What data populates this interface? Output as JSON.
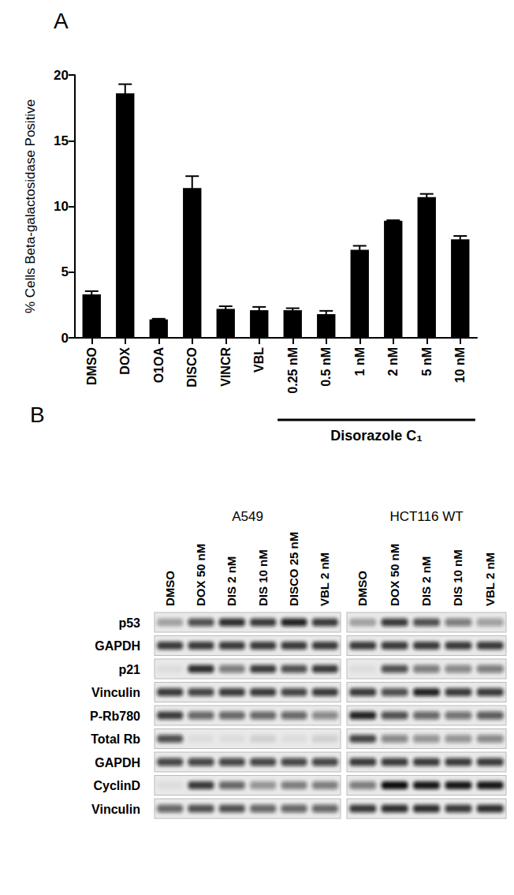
{
  "chart_data": {
    "type": "bar",
    "y_label": "% Cells Beta-galactosidase Positive",
    "categories": [
      "DMSO",
      "DOX",
      "O1OA",
      "DISCO",
      "VINCR",
      "VBL",
      "0.25 nM",
      "0.5 nM",
      "1 nM",
      "2 nM",
      "5 nM",
      "10 nM"
    ],
    "values": [
      3.3,
      18.6,
      1.4,
      11.4,
      2.2,
      2.1,
      2.1,
      1.8,
      6.7,
      8.9,
      10.7,
      7.5
    ],
    "errors": [
      0.25,
      0.7,
      0.05,
      0.9,
      0.2,
      0.25,
      0.15,
      0.25,
      0.3,
      0.05,
      0.25,
      0.25
    ],
    "color": "#000000",
    "ylim": [
      0,
      20
    ],
    "yticks": [
      0,
      5,
      10,
      15,
      20
    ],
    "grid": false,
    "group": {
      "label": "Disorazole C₁",
      "from": "0.25 nM",
      "to": "10 nM"
    }
  },
  "panel_labels": [
    "A",
    "B"
  ],
  "western_blot": {
    "rows": [
      "p53",
      "GAPDH",
      "p21",
      "Vinculin",
      "P-Rb780",
      "Total Rb",
      "GAPDH",
      "CyclinD",
      "Vinculin"
    ],
    "groups": [
      {
        "name": "A549",
        "lanes": [
          "DMSO",
          "DOX 50 nM",
          "DIS 2 nM",
          "DIS 10 nM",
          "DISCO 25 nM",
          "VBL 2 nM"
        ],
        "bands": [
          [
            0.3,
            0.7,
            0.85,
            0.8,
            0.9,
            0.8
          ],
          [
            0.8,
            0.8,
            0.8,
            0.8,
            0.8,
            0.8
          ],
          [
            0.05,
            0.85,
            0.5,
            0.8,
            0.7,
            0.8
          ],
          [
            0.8,
            0.75,
            0.8,
            0.8,
            0.75,
            0.8
          ],
          [
            0.8,
            0.6,
            0.6,
            0.6,
            0.6,
            0.45
          ],
          [
            0.7,
            0.05,
            0.05,
            0.1,
            0.05,
            0.1
          ],
          [
            0.75,
            0.75,
            0.75,
            0.75,
            0.75,
            0.75
          ],
          [
            0.05,
            0.8,
            0.6,
            0.4,
            0.5,
            0.5
          ],
          [
            0.6,
            0.7,
            0.7,
            0.6,
            0.6,
            0.6
          ]
        ]
      },
      {
        "name": "HCT116 WT",
        "lanes": [
          "DMSO",
          "DOX 50 nM",
          "DIS 2 nM",
          "DIS 10 nM",
          "VBL 2 nM"
        ],
        "bands": [
          [
            0.3,
            0.8,
            0.7,
            0.5,
            0.35
          ],
          [
            0.8,
            0.8,
            0.8,
            0.8,
            0.8
          ],
          [
            0.05,
            0.7,
            0.5,
            0.45,
            0.5
          ],
          [
            0.8,
            0.7,
            0.9,
            0.8,
            0.8
          ],
          [
            0.9,
            0.7,
            0.6,
            0.55,
            0.65
          ],
          [
            0.75,
            0.45,
            0.4,
            0.4,
            0.45
          ],
          [
            0.8,
            0.8,
            0.8,
            0.8,
            0.8
          ],
          [
            0.5,
            1,
            0.95,
            0.95,
            0.95
          ],
          [
            0.8,
            0.85,
            0.85,
            0.8,
            0.85
          ]
        ]
      }
    ]
  }
}
